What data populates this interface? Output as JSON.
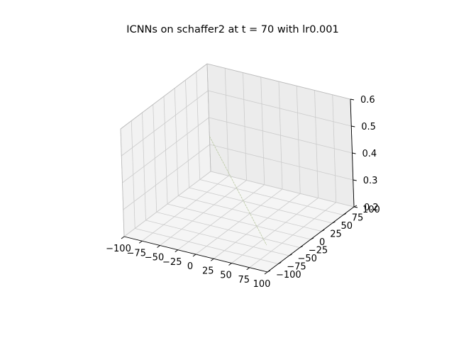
{
  "chart_data": {
    "type": "surface3d",
    "title": "ICNNs on schaffer2 at t = 70 with lr0.001",
    "x": {
      "label": "",
      "ticks": [
        -100,
        -75,
        -50,
        -25,
        0,
        25,
        50,
        75,
        100
      ],
      "tick_labels": [
        "−100",
        "−75",
        "−50",
        "−25",
        "0",
        "25",
        "50",
        "75",
        "100"
      ],
      "range": [
        -100,
        100
      ]
    },
    "y": {
      "label": "",
      "ticks": [
        -100,
        -75,
        -50,
        -25,
        0,
        25,
        50,
        75,
        100
      ],
      "tick_labels": [
        "−100",
        "−75",
        "−50",
        "−25",
        "0",
        "25",
        "50",
        "75",
        "100"
      ],
      "range": [
        -100,
        100
      ]
    },
    "z": {
      "label": "",
      "ticks": [
        0.2,
        0.3,
        0.4,
        0.5,
        0.6
      ],
      "tick_labels": [
        "0.2",
        "0.3",
        "0.4",
        "0.5",
        "0.6"
      ],
      "range": [
        0.2,
        0.6
      ]
    },
    "grid": true,
    "curve": {
      "description_points": [
        {
          "x": -100,
          "y": 100,
          "z": 0.33
        },
        {
          "x": 100,
          "y": -100,
          "z": 0.3
        }
      ],
      "color": "#b8c7a0"
    },
    "colors": {
      "pane_left": "#f2f2f2",
      "pane_back": "#ececec",
      "pane_floor": "#f5f5f5",
      "grid": "#cccccc",
      "axis": "#000000"
    }
  }
}
